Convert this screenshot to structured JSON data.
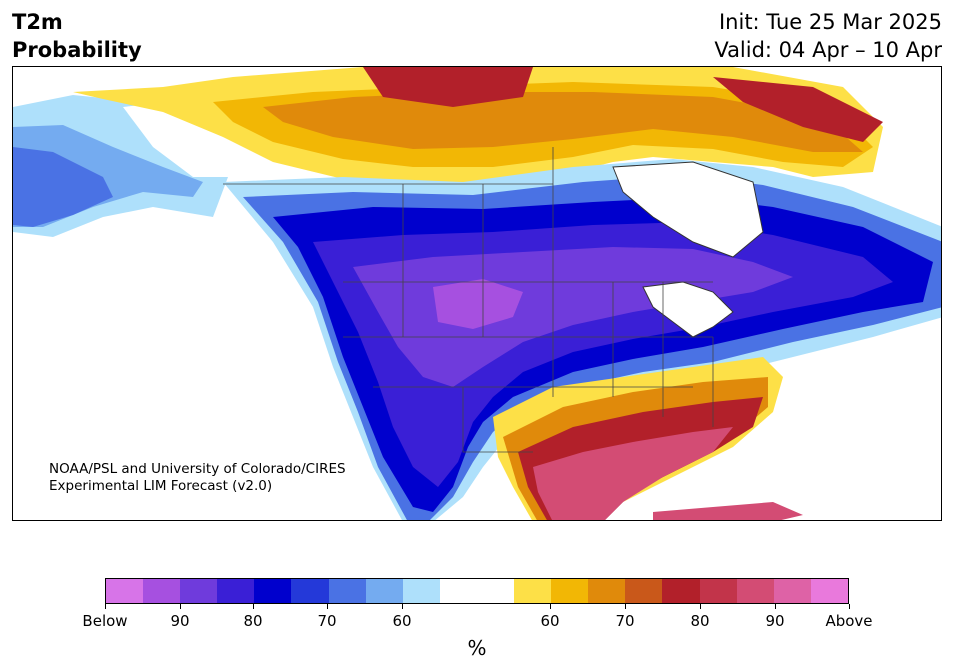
{
  "title": {
    "variable": "T2m",
    "kind": "Probability",
    "init": "Init: Tue 25 Mar 2025",
    "valid": "Valid: 04 Apr – 10 Apr"
  },
  "credit": {
    "line1": "NOAA/PSL and University of Colorado/CIRES",
    "line2": "Experimental LIM Forecast (v2.0)"
  },
  "colorbar": {
    "unit": "%",
    "colors": [
      "#d774e8",
      "#a650e0",
      "#6f3bdc",
      "#3a1fd6",
      "#0000cd",
      "#2439d9",
      "#4a72e4",
      "#74abf0",
      "#aee0fb",
      "#ffffff",
      "#ffffff",
      "#fde047",
      "#f2b705",
      "#e08a0b",
      "#c9581a",
      "#b2202a",
      "#c2344a",
      "#d34c74",
      "#de62a6",
      "#e979dc"
    ],
    "tick_labels": [
      "Below",
      "90",
      "80",
      "70",
      "60",
      "60",
      "70",
      "80",
      "90",
      "Above"
    ]
  },
  "map": {
    "region": "North America",
    "colors": {
      "below_strong": "#6f3bdc",
      "below_core": "#3a1fd6",
      "below_mid": "#0000cd",
      "below_light": "#4a72e4",
      "below_pale": "#aee0fb",
      "above_pale": "#fde047",
      "above_mid": "#e08a0b",
      "above_strong": "#b2202a",
      "above_max": "#d34c74"
    }
  }
}
